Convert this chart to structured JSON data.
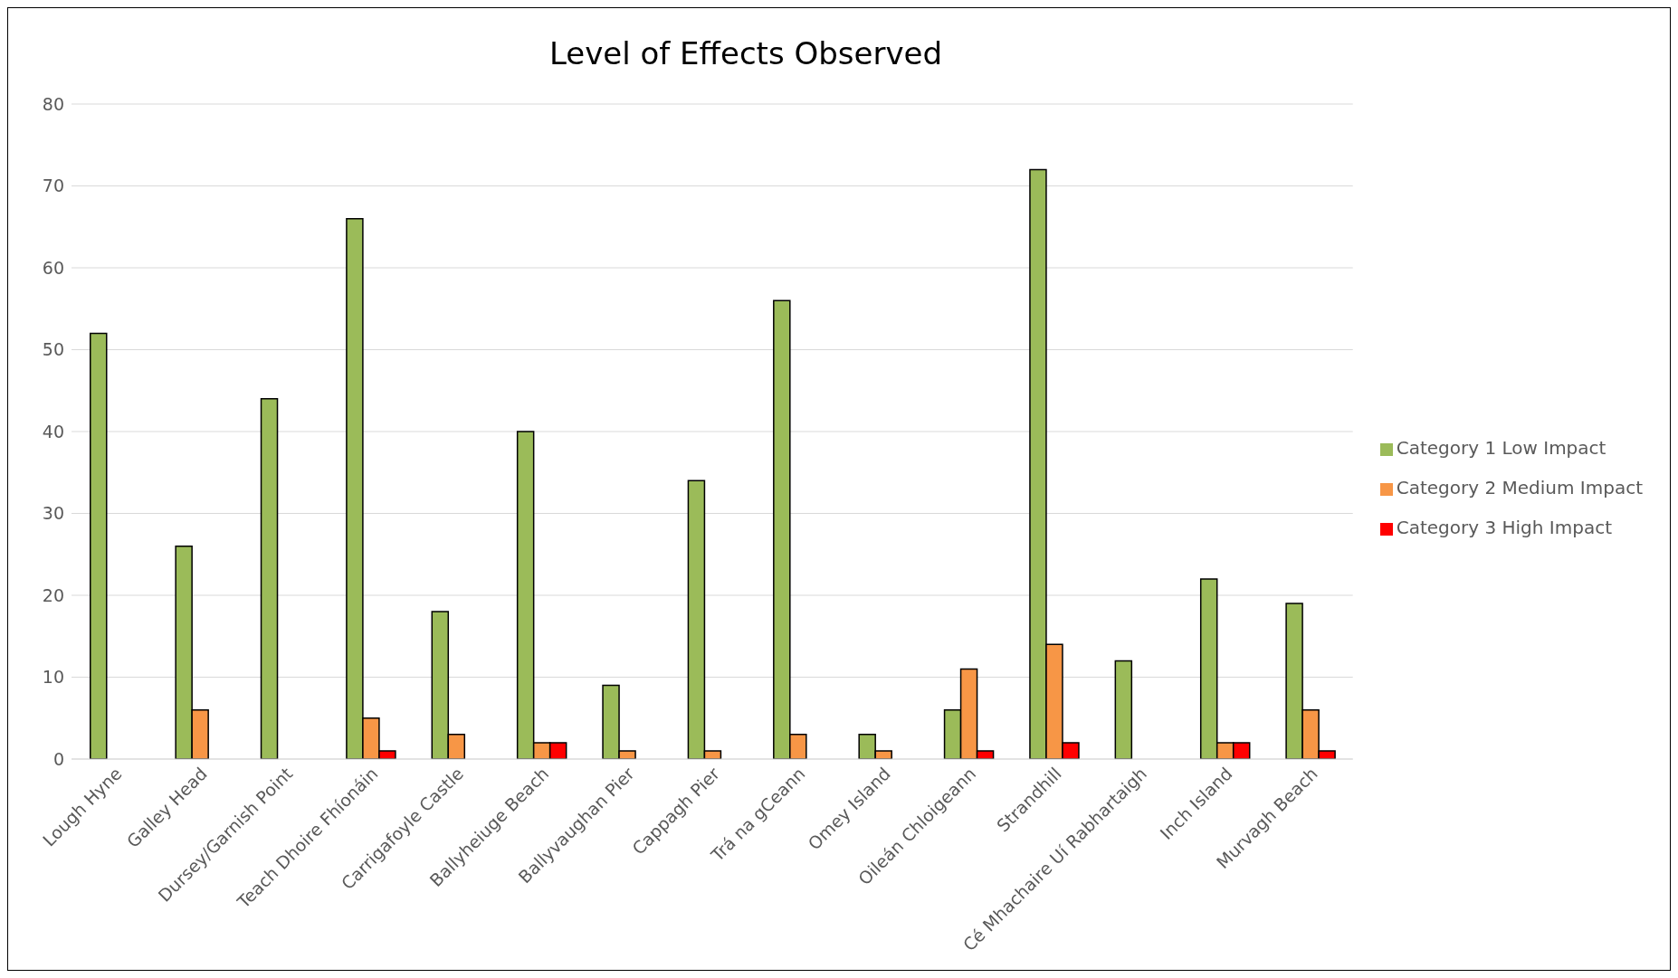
{
  "chart_data": {
    "type": "bar",
    "title": "Level of Effects Observed",
    "categories": [
      "Lough Hyne",
      "Galley Head",
      "Dursey/Garnish Point",
      "Teach Dhoire Fhíonáin",
      "Carrigafoyle Castle",
      "Ballyheiuge Beach",
      "Ballyvaughan Pier",
      "Cappagh Pier",
      "Trá na gCeann",
      "Omey Island",
      "Oileán Chloigeann",
      "Strandhill",
      "Cé Mhachaire Uí Rabhartaigh",
      "Inch Island",
      "Murvagh Beach"
    ],
    "series": [
      {
        "name": "Category 1 Low Impact",
        "color": "#9bbb59",
        "values": [
          52,
          26,
          44,
          66,
          18,
          40,
          9,
          34,
          56,
          3,
          6,
          72,
          12,
          22,
          19
        ]
      },
      {
        "name": "Category 2 Medium Impact",
        "color": "#f79646",
        "values": [
          null,
          6,
          null,
          5,
          3,
          2,
          1,
          1,
          3,
          1,
          11,
          14,
          null,
          2,
          6
        ]
      },
      {
        "name": "Category 3 High Impact",
        "color": "#ff0000",
        "values": [
          null,
          null,
          null,
          1,
          null,
          2,
          null,
          null,
          null,
          null,
          1,
          2,
          null,
          2,
          1
        ]
      }
    ],
    "ylim": [
      0,
      80
    ],
    "yticks": [
      0,
      10,
      20,
      30,
      40,
      50,
      60,
      70,
      80
    ],
    "grid": "y",
    "legend": "right"
  }
}
